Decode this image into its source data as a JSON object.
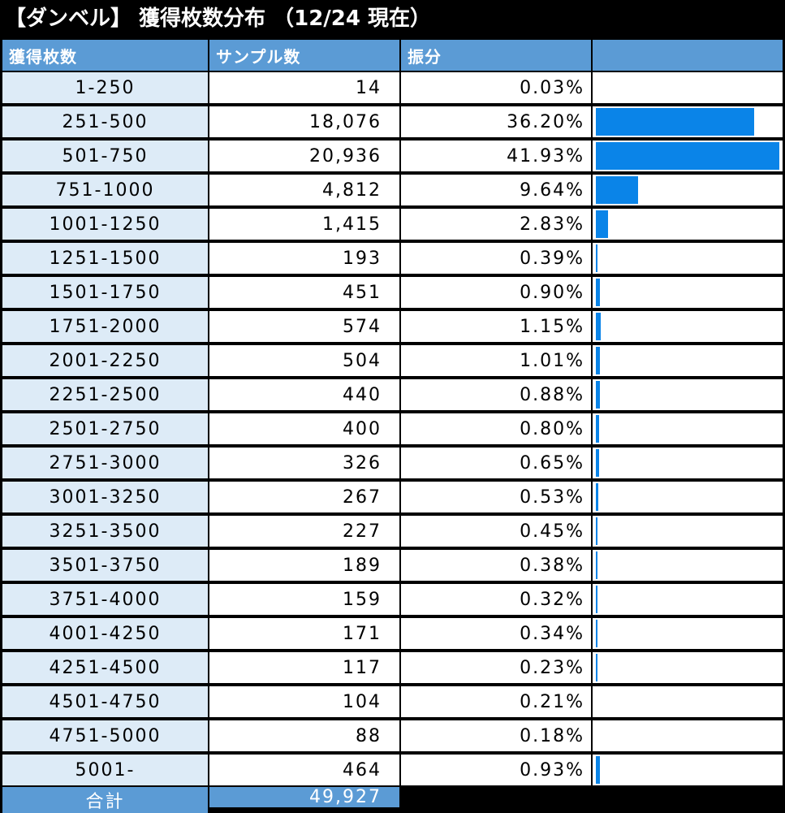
{
  "title": "【ダンベル】 獲得枚数分布 （12/24 現在）",
  "colors": {
    "header_bg": "#5b9bd5",
    "range_bg": "#ddebf7",
    "bar": "#0a84e8"
  },
  "headers": [
    "獲得枚数",
    "サンプル数",
    "振分",
    ""
  ],
  "chart_data": {
    "type": "table",
    "title": "【ダンベル】 獲得枚数分布 （12/24 現在）",
    "columns": [
      "獲得枚数",
      "サンプル数",
      "振分"
    ],
    "rows": [
      {
        "range": "1-250",
        "count": "14",
        "pct": "0.03%",
        "pct_value": 0.03
      },
      {
        "range": "251-500",
        "count": "18,076",
        "pct": "36.20%",
        "pct_value": 36.2
      },
      {
        "range": "501-750",
        "count": "20,936",
        "pct": "41.93%",
        "pct_value": 41.93
      },
      {
        "range": "751-1000",
        "count": "4,812",
        "pct": "9.64%",
        "pct_value": 9.64
      },
      {
        "range": "1001-1250",
        "count": "1,415",
        "pct": "2.83%",
        "pct_value": 2.83
      },
      {
        "range": "1251-1500",
        "count": "193",
        "pct": "0.39%",
        "pct_value": 0.39
      },
      {
        "range": "1501-1750",
        "count": "451",
        "pct": "0.90%",
        "pct_value": 0.9
      },
      {
        "range": "1751-2000",
        "count": "574",
        "pct": "1.15%",
        "pct_value": 1.15
      },
      {
        "range": "2001-2250",
        "count": "504",
        "pct": "1.01%",
        "pct_value": 1.01
      },
      {
        "range": "2251-2500",
        "count": "440",
        "pct": "0.88%",
        "pct_value": 0.88
      },
      {
        "range": "2501-2750",
        "count": "400",
        "pct": "0.80%",
        "pct_value": 0.8
      },
      {
        "range": "2751-3000",
        "count": "326",
        "pct": "0.65%",
        "pct_value": 0.65
      },
      {
        "range": "3001-3250",
        "count": "267",
        "pct": "0.53%",
        "pct_value": 0.53
      },
      {
        "range": "3251-3500",
        "count": "227",
        "pct": "0.45%",
        "pct_value": 0.45
      },
      {
        "range": "3501-3750",
        "count": "189",
        "pct": "0.38%",
        "pct_value": 0.38
      },
      {
        "range": "3751-4000",
        "count": "159",
        "pct": "0.32%",
        "pct_value": 0.32
      },
      {
        "range": "4001-4250",
        "count": "171",
        "pct": "0.34%",
        "pct_value": 0.34
      },
      {
        "range": "4251-4500",
        "count": "117",
        "pct": "0.23%",
        "pct_value": 0.23
      },
      {
        "range": "4501-4750",
        "count": "104",
        "pct": "0.21%",
        "pct_value": 0.21
      },
      {
        "range": "4751-5000",
        "count": "88",
        "pct": "0.18%",
        "pct_value": 0.18
      },
      {
        "range": "5001-",
        "count": "464",
        "pct": "0.93%",
        "pct_value": 0.93
      }
    ],
    "bar_max": 41.93,
    "total_label": "合計",
    "total_value": "49,927"
  }
}
